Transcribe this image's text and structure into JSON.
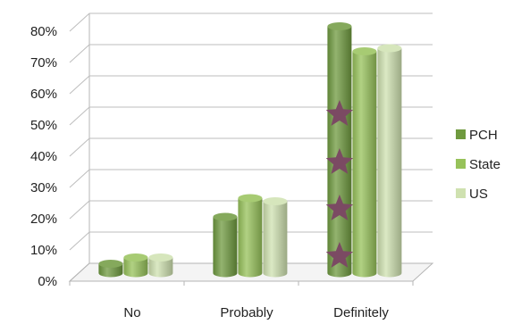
{
  "chart_data": {
    "type": "bar",
    "title": "",
    "xlabel": "",
    "ylabel": "",
    "categories": [
      "No",
      "Probably",
      "Definitely"
    ],
    "series": [
      {
        "name": "PCH",
        "values": [
          3,
          18,
          79
        ],
        "color": "#6f9a3f"
      },
      {
        "name": "State",
        "values": [
          5,
          24,
          71
        ],
        "color": "#97c25a"
      },
      {
        "name": "US",
        "values": [
          5,
          23,
          72
        ],
        "color": "#cfe1b0"
      }
    ],
    "ylim": [
      0,
      80
    ],
    "ytick_labels": [
      "0%",
      "10%",
      "20%",
      "30%",
      "40%",
      "50%",
      "60%",
      "70%",
      "80%"
    ],
    "grid": true,
    "legend_position": "right",
    "annotations": {
      "type": "star",
      "color": "#7b4a63",
      "category": "Definitely",
      "count": 4
    }
  }
}
